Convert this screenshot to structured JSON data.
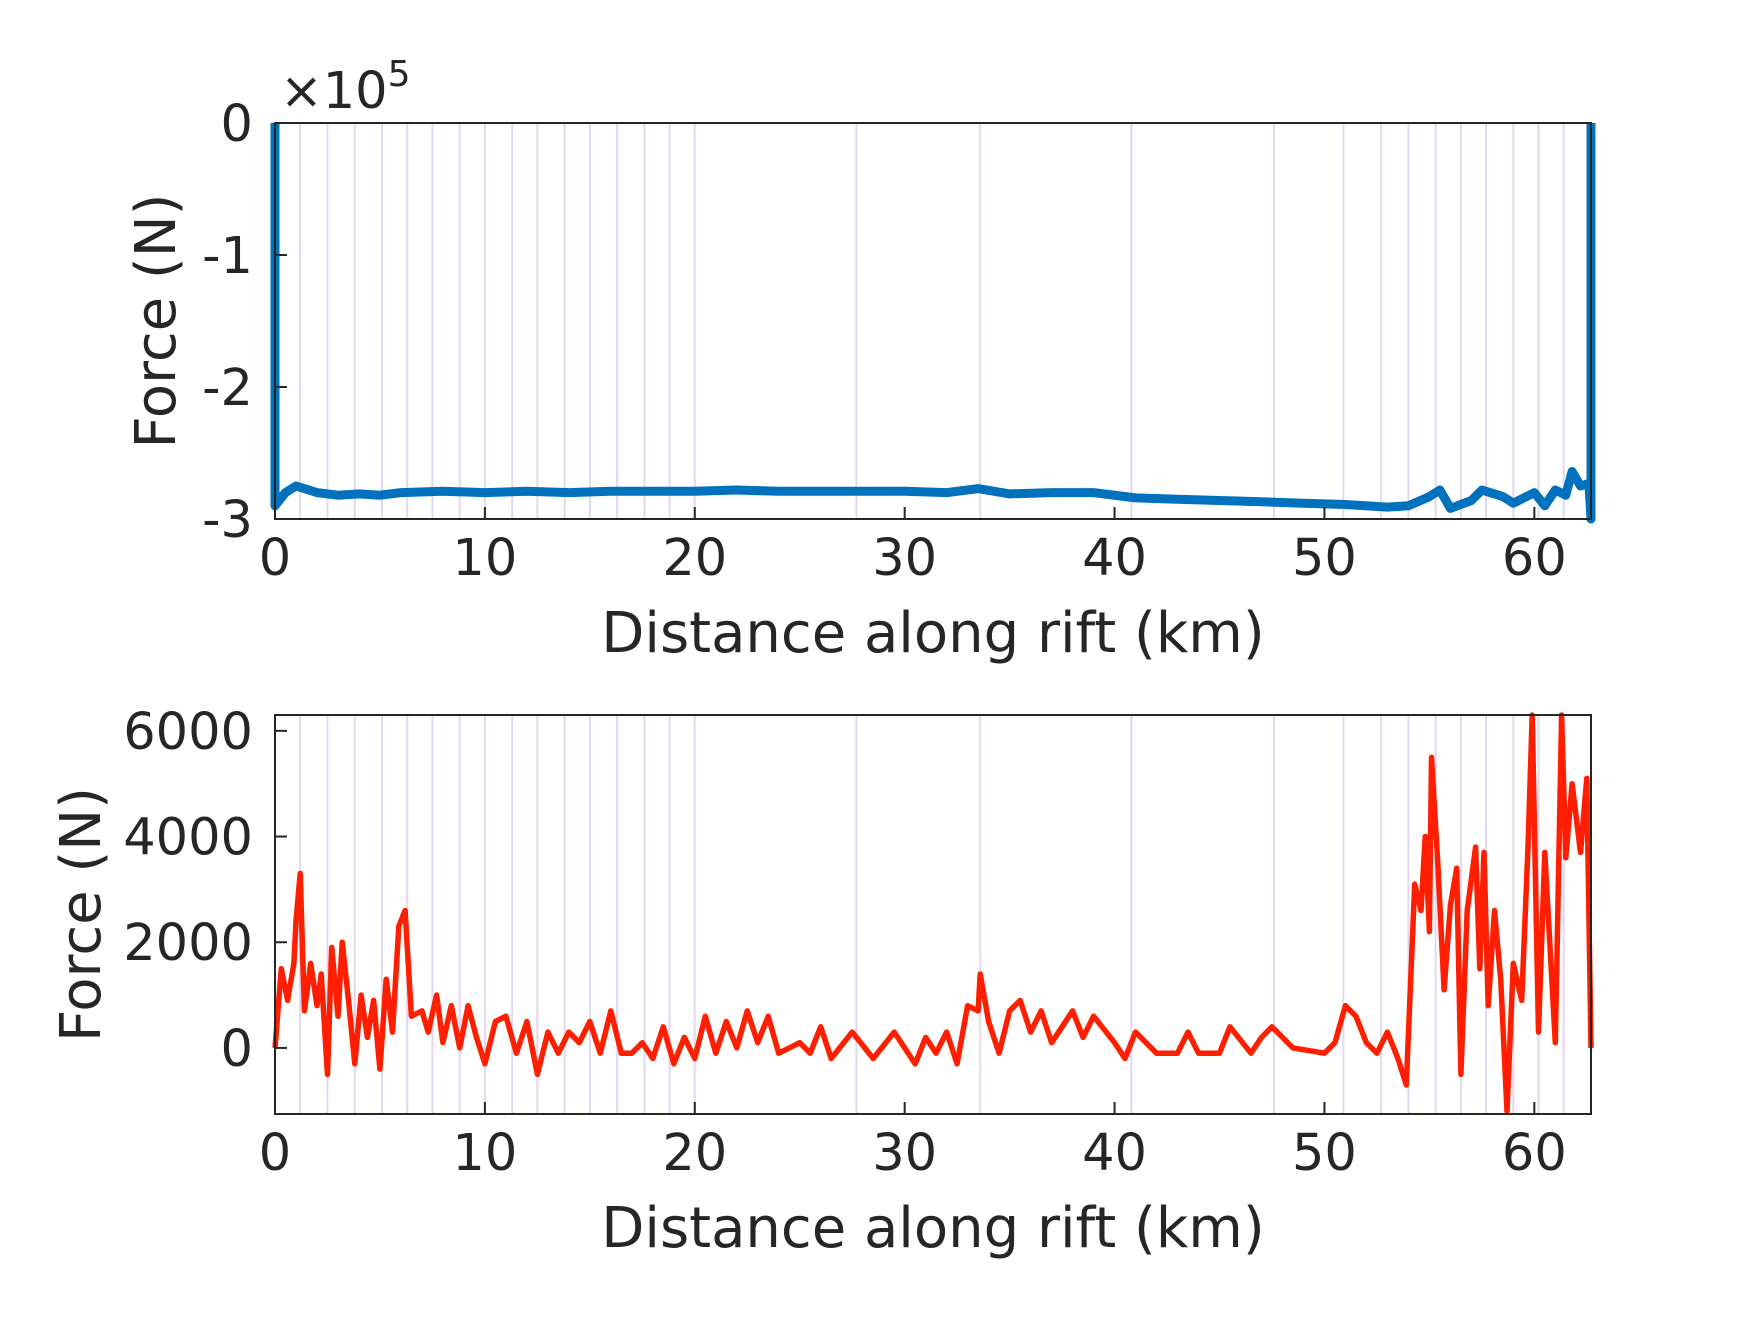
{
  "chart_data": [
    {
      "type": "line",
      "y_multiplier": {
        "base": "×10",
        "exponent": "5"
      },
      "xlabel": "Distance along rift (km)",
      "ylabel": "Force (N)",
      "xlim": [
        0,
        62.7
      ],
      "ylim": [
        -3,
        0
      ],
      "xticks": [
        0,
        10,
        20,
        30,
        40,
        50,
        60
      ],
      "yticks": [
        -3,
        -2,
        -1,
        0
      ],
      "vlines": [
        1.2,
        2.5,
        3.8,
        5.1,
        6.3,
        7.5,
        8.8,
        10.0,
        11.3,
        12.5,
        13.8,
        15.0,
        16.3,
        17.6,
        18.8,
        20.0,
        27.7,
        33.6,
        40.8,
        47.6,
        50.9,
        52.7,
        54.0,
        55.3,
        56.5,
        57.7,
        59.0,
        60.2,
        61.4
      ],
      "vline_color": "#e3d6ee",
      "series": [
        {
          "color": "#0072bd",
          "x": [
            0,
            0,
            0.5,
            1,
            2,
            3,
            4,
            5,
            6,
            8,
            10,
            12,
            14,
            16,
            18,
            20,
            22,
            24,
            26,
            28,
            30,
            32,
            33.5,
            35,
            37,
            39,
            41,
            43,
            45,
            47,
            49,
            51,
            53,
            54,
            55,
            55.5,
            56,
            57,
            57.5,
            58.5,
            59,
            60,
            60.5,
            61,
            61.5,
            61.8,
            62.2,
            62.6,
            62.7,
            62.7
          ],
          "values": [
            0,
            -2.9,
            -2.8,
            -2.75,
            -2.8,
            -2.82,
            -2.81,
            -2.82,
            -2.8,
            -2.79,
            -2.8,
            -2.79,
            -2.8,
            -2.79,
            -2.79,
            -2.79,
            -2.78,
            -2.79,
            -2.79,
            -2.79,
            -2.79,
            -2.8,
            -2.77,
            -2.81,
            -2.8,
            -2.8,
            -2.84,
            -2.85,
            -2.86,
            -2.87,
            -2.88,
            -2.89,
            -2.91,
            -2.9,
            -2.83,
            -2.78,
            -2.92,
            -2.86,
            -2.78,
            -2.83,
            -2.88,
            -2.8,
            -2.9,
            -2.78,
            -2.82,
            -2.64,
            -2.75,
            -2.73,
            -3,
            0
          ]
        }
      ]
    },
    {
      "type": "line",
      "xlabel": "Distance along rift (km)",
      "ylabel": "Force (N)",
      "xlim": [
        0,
        62.7
      ],
      "ylim": [
        -1250,
        6300
      ],
      "xticks": [
        0,
        10,
        20,
        30,
        40,
        50,
        60
      ],
      "yticks": [
        0,
        2000,
        4000,
        6000
      ],
      "vlines": [
        1.2,
        2.5,
        3.8,
        5.1,
        6.3,
        7.5,
        8.8,
        10.0,
        11.3,
        12.5,
        13.8,
        15.0,
        16.3,
        17.6,
        18.8,
        20.0,
        27.7,
        33.6,
        40.8,
        47.6,
        50.9,
        52.7,
        54.0,
        55.3,
        56.5,
        57.7,
        59.0,
        60.2,
        61.4
      ],
      "vline_color": "#e3d6ee",
      "series": [
        {
          "color": "#ff1f00",
          "x": [
            0,
            0.3,
            0.6,
            0.9,
            1.0,
            1.2,
            1.4,
            1.7,
            2.0,
            2.2,
            2.5,
            2.7,
            3.0,
            3.2,
            3.5,
            3.8,
            4.1,
            4.4,
            4.7,
            5.0,
            5.3,
            5.6,
            5.9,
            6.2,
            6.5,
            7.0,
            7.3,
            7.7,
            8.0,
            8.4,
            8.8,
            9.2,
            9.6,
            10.0,
            10.5,
            11.0,
            11.5,
            12.0,
            12.5,
            13.0,
            13.5,
            14.0,
            14.5,
            15.0,
            15.5,
            16.0,
            16.5,
            17.0,
            17.5,
            18.0,
            18.5,
            19.0,
            19.5,
            20.0,
            20.5,
            21.0,
            21.5,
            22.0,
            22.5,
            23.0,
            23.5,
            24.0,
            25.0,
            25.5,
            26.0,
            26.5,
            27.5,
            28.5,
            29.5,
            30.5,
            31.0,
            31.5,
            32.0,
            32.5,
            33.0,
            33.5,
            33.6,
            34.0,
            34.5,
            35.0,
            35.5,
            36.0,
            36.5,
            37.0,
            37.5,
            38.0,
            38.5,
            39.0,
            40.0,
            40.5,
            41.0,
            42.0,
            43.0,
            43.5,
            44.0,
            45.0,
            45.5,
            46.5,
            47.0,
            47.5,
            48.5,
            50.0,
            50.5,
            51.0,
            51.5,
            52.0,
            52.5,
            53.0,
            53.5,
            53.9,
            54.3,
            54.6,
            54.8,
            55.0,
            55.1,
            55.4,
            55.7,
            56.0,
            56.3,
            56.5,
            56.8,
            57.2,
            57.4,
            57.6,
            57.8,
            58.1,
            58.4,
            58.7,
            59.0,
            59.4,
            59.7,
            59.9,
            60.2,
            60.5,
            61.0,
            61.3,
            61.5,
            61.8,
            62.2,
            62.5,
            62.7
          ],
          "values": [
            0,
            1500,
            900,
            1600,
            2400,
            3300,
            700,
            1600,
            800,
            1400,
            -500,
            1900,
            600,
            2000,
            900,
            -300,
            1000,
            200,
            900,
            -400,
            1300,
            300,
            2300,
            2600,
            600,
            700,
            300,
            1000,
            100,
            800,
            0,
            800,
            200,
            -300,
            500,
            600,
            -100,
            500,
            -500,
            300,
            -100,
            300,
            100,
            500,
            -100,
            700,
            -100,
            -100,
            100,
            -200,
            400,
            -300,
            200,
            -200,
            600,
            -100,
            500,
            0,
            700,
            100,
            600,
            -100,
            100,
            -100,
            400,
            -200,
            300,
            -200,
            300,
            -300,
            200,
            -100,
            300,
            -300,
            800,
            700,
            1400,
            500,
            -100,
            700,
            900,
            300,
            700,
            100,
            400,
            700,
            200,
            600,
            100,
            -200,
            300,
            -100,
            -100,
            300,
            -100,
            -100,
            400,
            -100,
            200,
            400,
            0,
            -100,
            100,
            800,
            600,
            100,
            -100,
            300,
            -200,
            -700,
            3100,
            2600,
            4000,
            2200,
            5500,
            3500,
            1100,
            2700,
            3400,
            -500,
            2600,
            3800,
            1500,
            3700,
            800,
            2600,
            1300,
            -1200,
            1600,
            900,
            3800,
            6300,
            300,
            3700,
            100,
            6300,
            3600,
            5000,
            3700,
            5100,
            0
          ]
        }
      ]
    }
  ]
}
